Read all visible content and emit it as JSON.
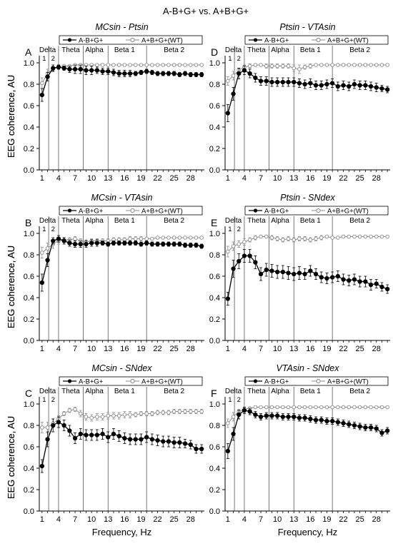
{
  "figure_title": "A-B+G+ vs. A+B+G+",
  "y_axis_label": "EEG coherence, AU",
  "x_axis_label": "Frequency, Hz",
  "legend": {
    "mutant": "A-B+G+",
    "wildtype": "A+B+G+(WT)"
  },
  "bands": {
    "delta": "Delta",
    "theta": "Theta",
    "alpha": "Alpha",
    "beta1": "Beta 1",
    "beta2": "Beta 2",
    "sub1": "1",
    "sub2": "2"
  },
  "x_ticks": [
    "1",
    "4",
    "7",
    "10",
    "13",
    "16",
    "19",
    "22",
    "25",
    "28"
  ],
  "y_ticks": [
    "0.0",
    "0.2",
    "0.4",
    "0.6",
    "0.8",
    "1.0"
  ],
  "colors": {
    "mutant": "#000000",
    "wildtype": "#8c8c8c",
    "boundary": "#555555"
  },
  "chart_data": [
    {
      "type": "line",
      "letter": "A",
      "title": "MCsin - Ptsin",
      "x": [
        1,
        2,
        3,
        4,
        5,
        6,
        7,
        8,
        9,
        10,
        11,
        12,
        13,
        14,
        15,
        16,
        17,
        18,
        19,
        20,
        21,
        22,
        23,
        24,
        25,
        26,
        27,
        28,
        29,
        30
      ],
      "xlim": [
        0.5,
        30.5
      ],
      "ylim": [
        0,
        1.0
      ],
      "grid": false,
      "legend_position": "top",
      "series": [
        {
          "name": "A-B+G+",
          "marker": "filled-circle",
          "values": [
            0.7,
            0.87,
            0.95,
            0.96,
            0.95,
            0.94,
            0.94,
            0.94,
            0.93,
            0.93,
            0.93,
            0.92,
            0.92,
            0.91,
            0.9,
            0.9,
            0.9,
            0.9,
            0.91,
            0.92,
            0.91,
            0.9,
            0.9,
            0.9,
            0.9,
            0.89,
            0.9,
            0.89,
            0.89,
            0.89
          ],
          "error": [
            0.06,
            0.04,
            0.03,
            0.02,
            0.02,
            0.03,
            0.04,
            0.04,
            0.04,
            0.04,
            0.03,
            0.03,
            0.03,
            0.03,
            0.03,
            0.03,
            0.03,
            0.02,
            0.02,
            0.02,
            0.02,
            0.02,
            0.02,
            0.02,
            0.02,
            0.02,
            0.02,
            0.02,
            0.02,
            0.02
          ]
        },
        {
          "name": "A+B+G+(WT)",
          "marker": "open-circle",
          "values": [
            0.81,
            0.9,
            0.94,
            0.96,
            0.97,
            0.97,
            0.98,
            0.98,
            0.98,
            0.98,
            0.98,
            0.98,
            0.98,
            0.98,
            0.98,
            0.98,
            0.98,
            0.98,
            0.98,
            0.98,
            0.98,
            0.98,
            0.98,
            0.98,
            0.98,
            0.98,
            0.98,
            0.98,
            0.98,
            0.98
          ],
          "error": [
            0.05,
            0.04,
            0.02,
            0.02,
            0.01,
            0.01,
            0.01,
            0.01,
            0.01,
            0.01,
            0.01,
            0.01,
            0.01,
            0.01,
            0.01,
            0.01,
            0.01,
            0.01,
            0.01,
            0.01,
            0.01,
            0.01,
            0.01,
            0.01,
            0.01,
            0.01,
            0.01,
            0.01,
            0.01,
            0.01
          ]
        }
      ]
    },
    {
      "type": "line",
      "letter": "D",
      "title": "Ptsin - VTAsin",
      "x": [
        1,
        2,
        3,
        4,
        5,
        6,
        7,
        8,
        9,
        10,
        11,
        12,
        13,
        14,
        15,
        16,
        17,
        18,
        19,
        20,
        21,
        22,
        23,
        24,
        25,
        26,
        27,
        28,
        29,
        30
      ],
      "xlim": [
        0.5,
        30.5
      ],
      "ylim": [
        0,
        1.0
      ],
      "grid": false,
      "legend_position": "top",
      "series": [
        {
          "name": "A-B+G+",
          "marker": "filled-circle",
          "values": [
            0.53,
            0.71,
            0.9,
            0.93,
            0.9,
            0.86,
            0.83,
            0.83,
            0.82,
            0.82,
            0.82,
            0.82,
            0.82,
            0.81,
            0.8,
            0.81,
            0.79,
            0.79,
            0.8,
            0.81,
            0.78,
            0.79,
            0.78,
            0.8,
            0.79,
            0.79,
            0.78,
            0.77,
            0.76,
            0.75
          ],
          "error": [
            0.08,
            0.06,
            0.05,
            0.04,
            0.04,
            0.04,
            0.04,
            0.04,
            0.04,
            0.04,
            0.04,
            0.04,
            0.04,
            0.04,
            0.04,
            0.04,
            0.04,
            0.04,
            0.04,
            0.04,
            0.04,
            0.04,
            0.04,
            0.04,
            0.04,
            0.04,
            0.04,
            0.04,
            0.03,
            0.03
          ]
        },
        {
          "name": "A+B+G+(WT)",
          "marker": "open-circle",
          "values": [
            0.83,
            0.88,
            0.93,
            0.96,
            0.97,
            0.98,
            0.98,
            0.97,
            0.97,
            0.97,
            0.97,
            0.97,
            0.95,
            0.94,
            0.96,
            0.97,
            0.98,
            0.98,
            0.98,
            0.98,
            0.98,
            0.98,
            0.98,
            0.98,
            0.98,
            0.98,
            0.98,
            0.98,
            0.98,
            0.98
          ],
          "error": [
            0.04,
            0.04,
            0.02,
            0.02,
            0.02,
            0.01,
            0.01,
            0.02,
            0.02,
            0.02,
            0.02,
            0.02,
            0.03,
            0.04,
            0.02,
            0.02,
            0.01,
            0.01,
            0.01,
            0.01,
            0.01,
            0.01,
            0.01,
            0.01,
            0.01,
            0.01,
            0.01,
            0.01,
            0.01,
            0.01
          ]
        }
      ]
    },
    {
      "type": "line",
      "letter": "B",
      "title": "MCsin - VTAsin",
      "x": [
        1,
        2,
        3,
        4,
        5,
        6,
        7,
        8,
        9,
        10,
        11,
        12,
        13,
        14,
        15,
        16,
        17,
        18,
        19,
        20,
        21,
        22,
        23,
        24,
        25,
        26,
        27,
        28,
        29,
        30
      ],
      "xlim": [
        0.5,
        30.5
      ],
      "ylim": [
        0,
        1.0
      ],
      "grid": false,
      "legend_position": "top",
      "series": [
        {
          "name": "A-B+G+",
          "marker": "filled-circle",
          "values": [
            0.54,
            0.75,
            0.93,
            0.95,
            0.93,
            0.91,
            0.9,
            0.9,
            0.9,
            0.91,
            0.91,
            0.91,
            0.9,
            0.91,
            0.91,
            0.91,
            0.91,
            0.91,
            0.9,
            0.91,
            0.9,
            0.9,
            0.9,
            0.9,
            0.9,
            0.9,
            0.89,
            0.89,
            0.89,
            0.88
          ],
          "error": [
            0.08,
            0.06,
            0.03,
            0.03,
            0.03,
            0.03,
            0.03,
            0.03,
            0.03,
            0.03,
            0.03,
            0.02,
            0.02,
            0.02,
            0.02,
            0.02,
            0.02,
            0.02,
            0.02,
            0.02,
            0.02,
            0.02,
            0.02,
            0.02,
            0.02,
            0.02,
            0.02,
            0.02,
            0.02,
            0.02
          ]
        },
        {
          "name": "A+B+G+(WT)",
          "marker": "open-circle",
          "values": [
            0.82,
            0.86,
            0.9,
            0.93,
            0.94,
            0.94,
            0.95,
            0.93,
            0.92,
            0.93,
            0.93,
            0.93,
            0.93,
            0.94,
            0.94,
            0.94,
            0.95,
            0.95,
            0.95,
            0.95,
            0.95,
            0.96,
            0.96,
            0.96,
            0.96,
            0.96,
            0.96,
            0.96,
            0.96,
            0.96
          ],
          "error": [
            0.05,
            0.05,
            0.04,
            0.03,
            0.02,
            0.02,
            0.02,
            0.02,
            0.02,
            0.02,
            0.02,
            0.02,
            0.02,
            0.02,
            0.02,
            0.02,
            0.02,
            0.02,
            0.02,
            0.01,
            0.01,
            0.01,
            0.01,
            0.01,
            0.01,
            0.01,
            0.01,
            0.01,
            0.01,
            0.01
          ]
        }
      ]
    },
    {
      "type": "line",
      "letter": "E",
      "title": "Ptsin - SNdex",
      "x": [
        1,
        2,
        3,
        4,
        5,
        6,
        7,
        8,
        9,
        10,
        11,
        12,
        13,
        14,
        15,
        16,
        17,
        18,
        19,
        20,
        21,
        22,
        23,
        24,
        25,
        26,
        27,
        28,
        29,
        30
      ],
      "xlim": [
        0.5,
        30.5
      ],
      "ylim": [
        0,
        1.0
      ],
      "grid": false,
      "legend_position": "top",
      "series": [
        {
          "name": "A-B+G+",
          "marker": "filled-circle",
          "values": [
            0.39,
            0.67,
            0.74,
            0.79,
            0.79,
            0.73,
            0.62,
            0.66,
            0.65,
            0.64,
            0.64,
            0.63,
            0.62,
            0.63,
            0.62,
            0.65,
            0.62,
            0.59,
            0.58,
            0.59,
            0.6,
            0.57,
            0.56,
            0.57,
            0.55,
            0.55,
            0.52,
            0.53,
            0.5,
            0.48
          ],
          "error": [
            0.06,
            0.08,
            0.07,
            0.06,
            0.06,
            0.06,
            0.06,
            0.06,
            0.06,
            0.06,
            0.06,
            0.06,
            0.06,
            0.06,
            0.05,
            0.05,
            0.05,
            0.05,
            0.05,
            0.05,
            0.05,
            0.05,
            0.05,
            0.05,
            0.05,
            0.05,
            0.05,
            0.04,
            0.04,
            0.04
          ]
        },
        {
          "name": "A+B+G+(WT)",
          "marker": "open-circle",
          "values": [
            0.83,
            0.88,
            0.9,
            0.92,
            0.94,
            0.96,
            0.97,
            0.97,
            0.96,
            0.95,
            0.94,
            0.95,
            0.94,
            0.95,
            0.95,
            0.94,
            0.95,
            0.96,
            0.97,
            0.96,
            0.96,
            0.97,
            0.97,
            0.97,
            0.97,
            0.97,
            0.97,
            0.97,
            0.97,
            0.97
          ],
          "error": [
            0.05,
            0.04,
            0.03,
            0.03,
            0.02,
            0.02,
            0.01,
            0.01,
            0.02,
            0.02,
            0.02,
            0.02,
            0.02,
            0.02,
            0.02,
            0.02,
            0.02,
            0.02,
            0.01,
            0.01,
            0.01,
            0.01,
            0.01,
            0.01,
            0.01,
            0.01,
            0.01,
            0.01,
            0.01,
            0.01
          ]
        }
      ]
    },
    {
      "type": "line",
      "letter": "C",
      "title": "MCsin - SNdex",
      "x": [
        1,
        2,
        3,
        4,
        5,
        6,
        7,
        8,
        9,
        10,
        11,
        12,
        13,
        14,
        15,
        16,
        17,
        18,
        19,
        20,
        21,
        22,
        23,
        24,
        25,
        26,
        27,
        28,
        29,
        30
      ],
      "xlim": [
        0.5,
        30.5
      ],
      "ylim": [
        0,
        1.0
      ],
      "grid": false,
      "legend_position": "top",
      "series": [
        {
          "name": "A-B+G+",
          "marker": "filled-circle",
          "values": [
            0.42,
            0.67,
            0.8,
            0.83,
            0.8,
            0.75,
            0.68,
            0.72,
            0.71,
            0.71,
            0.71,
            0.72,
            0.69,
            0.72,
            0.7,
            0.68,
            0.67,
            0.67,
            0.67,
            0.69,
            0.67,
            0.66,
            0.65,
            0.65,
            0.64,
            0.64,
            0.63,
            0.62,
            0.58,
            0.58
          ],
          "error": [
            0.06,
            0.07,
            0.06,
            0.05,
            0.05,
            0.05,
            0.05,
            0.05,
            0.05,
            0.05,
            0.05,
            0.05,
            0.05,
            0.05,
            0.05,
            0.05,
            0.05,
            0.05,
            0.05,
            0.05,
            0.05,
            0.05,
            0.05,
            0.05,
            0.05,
            0.05,
            0.04,
            0.04,
            0.04,
            0.04
          ]
        },
        {
          "name": "A+B+G+(WT)",
          "marker": "open-circle",
          "values": [
            0.78,
            0.78,
            0.82,
            0.86,
            0.91,
            0.94,
            0.95,
            0.91,
            0.88,
            0.87,
            0.88,
            0.88,
            0.89,
            0.89,
            0.89,
            0.9,
            0.9,
            0.9,
            0.91,
            0.91,
            0.91,
            0.92,
            0.92,
            0.92,
            0.93,
            0.93,
            0.93,
            0.93,
            0.93,
            0.93
          ],
          "error": [
            0.05,
            0.05,
            0.04,
            0.03,
            0.02,
            0.02,
            0.02,
            0.03,
            0.03,
            0.03,
            0.03,
            0.03,
            0.03,
            0.03,
            0.03,
            0.03,
            0.03,
            0.02,
            0.02,
            0.02,
            0.02,
            0.02,
            0.02,
            0.02,
            0.02,
            0.02,
            0.02,
            0.02,
            0.02,
            0.02
          ]
        }
      ]
    },
    {
      "type": "line",
      "letter": "F",
      "title": "VTAsin - SNdex",
      "x": [
        1,
        2,
        3,
        4,
        5,
        6,
        7,
        8,
        9,
        10,
        11,
        12,
        13,
        14,
        15,
        16,
        17,
        18,
        19,
        20,
        21,
        22,
        23,
        24,
        25,
        26,
        27,
        28,
        29,
        30
      ],
      "xlim": [
        0.5,
        30.5
      ],
      "ylim": [
        0,
        1.0
      ],
      "grid": false,
      "legend_position": "top",
      "series": [
        {
          "name": "A-B+G+",
          "marker": "filled-circle",
          "values": [
            0.56,
            0.72,
            0.9,
            0.94,
            0.93,
            0.9,
            0.88,
            0.89,
            0.89,
            0.89,
            0.88,
            0.88,
            0.88,
            0.87,
            0.87,
            0.86,
            0.85,
            0.85,
            0.84,
            0.84,
            0.83,
            0.82,
            0.81,
            0.8,
            0.79,
            0.78,
            0.78,
            0.77,
            0.73,
            0.75
          ],
          "error": [
            0.07,
            0.06,
            0.04,
            0.03,
            0.03,
            0.03,
            0.03,
            0.03,
            0.03,
            0.03,
            0.03,
            0.03,
            0.03,
            0.03,
            0.03,
            0.03,
            0.03,
            0.03,
            0.03,
            0.03,
            0.03,
            0.03,
            0.03,
            0.03,
            0.03,
            0.03,
            0.03,
            0.03,
            0.03,
            0.03
          ]
        },
        {
          "name": "A+B+G+(WT)",
          "marker": "open-circle",
          "values": [
            0.82,
            0.88,
            0.93,
            0.95,
            0.96,
            0.97,
            0.97,
            0.97,
            0.97,
            0.97,
            0.97,
            0.97,
            0.97,
            0.97,
            0.97,
            0.97,
            0.97,
            0.97,
            0.97,
            0.97,
            0.97,
            0.97,
            0.97,
            0.97,
            0.97,
            0.97,
            0.97,
            0.97,
            0.97,
            0.97
          ],
          "error": [
            0.04,
            0.04,
            0.02,
            0.02,
            0.01,
            0.01,
            0.01,
            0.01,
            0.01,
            0.01,
            0.01,
            0.01,
            0.01,
            0.01,
            0.01,
            0.01,
            0.01,
            0.01,
            0.01,
            0.01,
            0.01,
            0.01,
            0.01,
            0.01,
            0.01,
            0.01,
            0.01,
            0.01,
            0.01,
            0.01
          ]
        }
      ]
    }
  ]
}
